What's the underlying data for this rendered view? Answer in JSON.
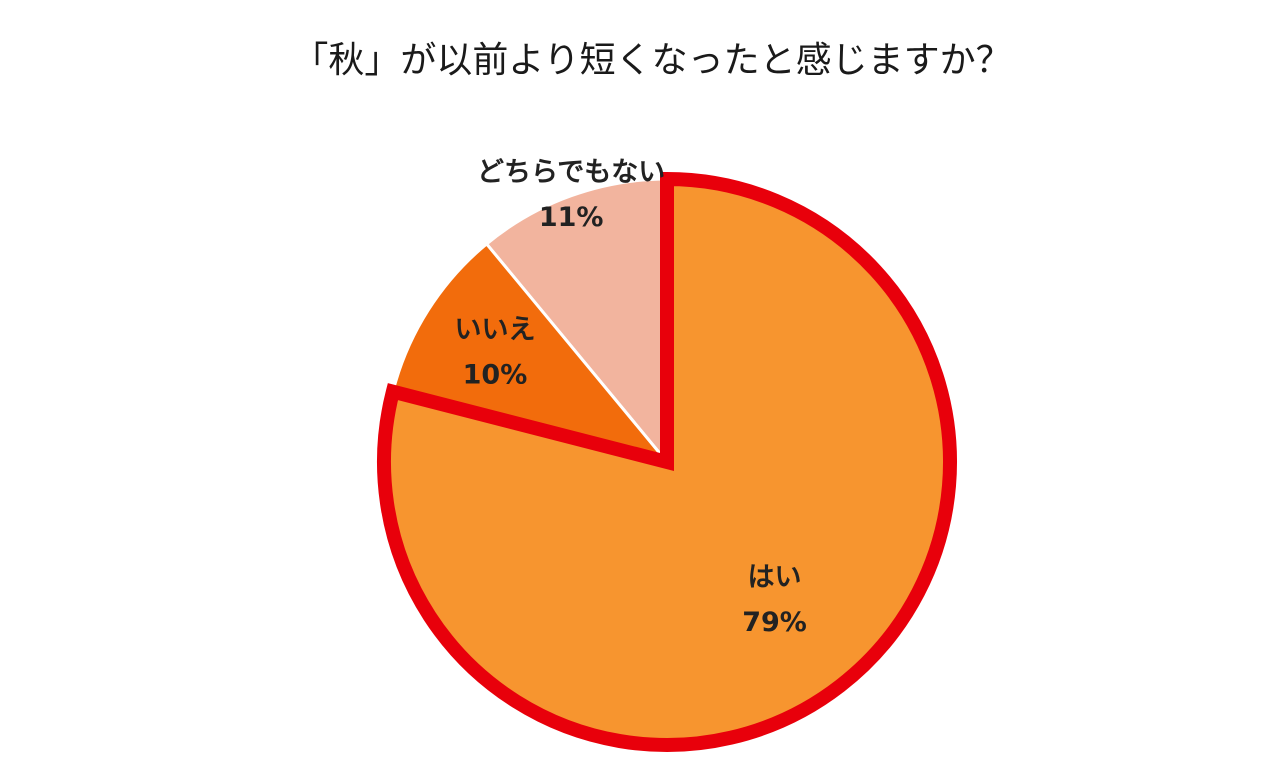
{
  "chart_data": {
    "type": "pie",
    "title": "「秋」が以前より短くなったと感じますか？",
    "categories": [
      "はい",
      "いいえ",
      "どちらでもない"
    ],
    "values": [
      79,
      10,
      11
    ],
    "value_labels": [
      "79%",
      "10%",
      "11%"
    ],
    "colors": [
      "#f7952f",
      "#f26c0c",
      "#f2b49e"
    ],
    "start_angle": 0,
    "direction": "clockwise"
  }
}
